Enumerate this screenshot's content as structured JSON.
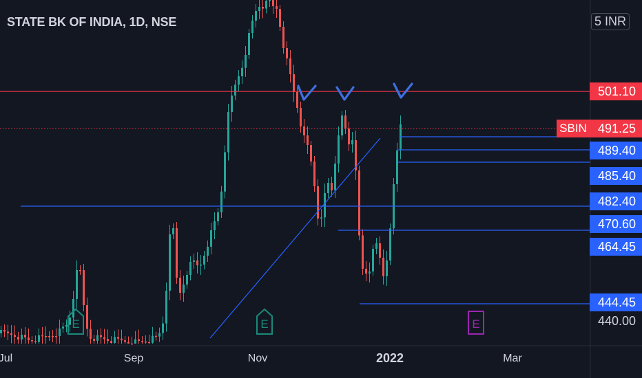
{
  "chart_title": "STATE BK OF INDIA, 1D, NSE",
  "currency": "INR",
  "currency_prefix_glyph": "5",
  "symbol_tag": "SBIN",
  "colors": {
    "background": "#131722",
    "up": "#26a69a",
    "down": "#ef5350",
    "blue_line": "#2962ff",
    "red_line": "#f23645",
    "earnings_green": "#1b8a7a",
    "earnings_purple": "#9c27b0",
    "check_mark": "#3f6fe0"
  },
  "chart_data": {
    "type": "candlestick",
    "y_range": [
      436,
      512
    ],
    "x_axis_labels": [
      {
        "label": "Jul"
      },
      {
        "label": "Sep"
      },
      {
        "label": "Nov"
      },
      {
        "label": "2022",
        "bold": true
      },
      {
        "label": "Mar"
      }
    ],
    "price_labels": [
      {
        "value": 501.1,
        "text": "501.10",
        "style": "red"
      },
      {
        "value": 491.25,
        "text": "491.25",
        "style": "red"
      },
      {
        "value": 489.4,
        "text": "489.40",
        "style": "blue"
      },
      {
        "value": 485.4,
        "text": "485.40",
        "style": "blue"
      },
      {
        "value": 482.4,
        "text": "482.40",
        "style": "blue"
      },
      {
        "value": 470.6,
        "text": "470.60",
        "style": "blue"
      },
      {
        "value": 464.45,
        "text": "464.45",
        "style": "blue"
      },
      {
        "value": 444.45,
        "text": "444.45",
        "style": "blue"
      },
      {
        "value": 440.0,
        "text": "440.00",
        "style": "plain"
      }
    ],
    "earnings_markers": [
      {
        "label": "E",
        "kind": "past"
      },
      {
        "label": "E",
        "kind": "past"
      },
      {
        "label": "E",
        "kind": "upcoming"
      }
    ]
  }
}
